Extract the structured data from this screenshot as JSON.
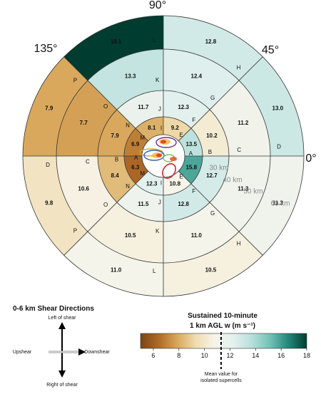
{
  "angle_labels": [
    "90°",
    "135°",
    "45°",
    "0°"
  ],
  "range_labels": [
    "30 km",
    "40 km",
    "50 km",
    "60 km"
  ],
  "sectors": [
    {
      "letter": "A",
      "side": 1,
      "values": [
        13.5,
        10.2,
        11.2,
        13.0
      ]
    },
    {
      "letter": "B",
      "side": 1,
      "values": [
        9.2,
        12.3,
        12.4,
        12.8
      ]
    },
    {
      "letter": "C",
      "side": 1,
      "values": [
        8.1,
        11.7,
        13.3,
        18.1
      ]
    },
    {
      "letter": "D",
      "side": 1,
      "values": [
        6.9,
        7.9,
        7.7,
        7.9
      ]
    },
    {
      "letter": "E",
      "side": 1,
      "values": [
        6.3,
        8.4,
        10.6,
        9.8
      ]
    },
    {
      "letter": "F",
      "side": -1,
      "values": [
        12.3,
        11.5,
        10.5,
        11.0
      ]
    },
    {
      "letter": "G",
      "side": -1,
      "values": [
        10.8,
        12.8,
        11.0,
        10.5
      ]
    },
    {
      "letter": "H",
      "side": -1,
      "values": [
        15.8,
        12.7,
        11.3,
        11.3
      ]
    }
  ],
  "boundary_letters": [
    {
      "side": 1,
      "labels": [
        "A",
        "B",
        "C",
        "D"
      ]
    },
    {
      "side": 1,
      "labels": [
        "E",
        "F",
        "G",
        "H"
      ]
    },
    {
      "side": 1,
      "labels": [
        "I",
        "J",
        "K",
        "L"
      ]
    },
    {
      "side": 1,
      "labels": [
        "M",
        "N",
        "O",
        "P"
      ]
    },
    {
      "side": 1,
      "labels": [
        "A",
        "B",
        "C",
        "D"
      ]
    },
    {
      "side": -1,
      "labels": [
        "M",
        "N",
        "O",
        "P"
      ]
    },
    {
      "side": -1,
      "labels": [
        "I",
        "J",
        "K",
        "L"
      ]
    },
    {
      "side": -1,
      "labels": [
        "E",
        "F",
        "G",
        "H"
      ]
    }
  ],
  "legend": {
    "shear_title": "0-6 km Shear Directions",
    "left_of_shear": "Left of shear",
    "right_of_shear": "Right of shear",
    "upshear": "Upshear",
    "downshear": "Downshear",
    "colorbar_title_1": "Sustained 10-minute",
    "colorbar_title_2": "1 km AGL w (m s⁻¹)",
    "colorbar_ticks": [
      "6",
      "8",
      "10",
      "12",
      "14",
      "16",
      "18"
    ],
    "mean_note_1": "Mean value for",
    "mean_note_2": "isolated supercells",
    "mean_value": 11.3
  },
  "colors": {
    "scale_stops": [
      "#7a4513",
      "#b06a28",
      "#d9a85c",
      "#f0ddb0",
      "#f7f4ea",
      "#e4f1ef",
      "#b8e0db",
      "#74c2b7",
      "#23877a",
      "#003d30"
    ],
    "line": "#333333"
  }
}
